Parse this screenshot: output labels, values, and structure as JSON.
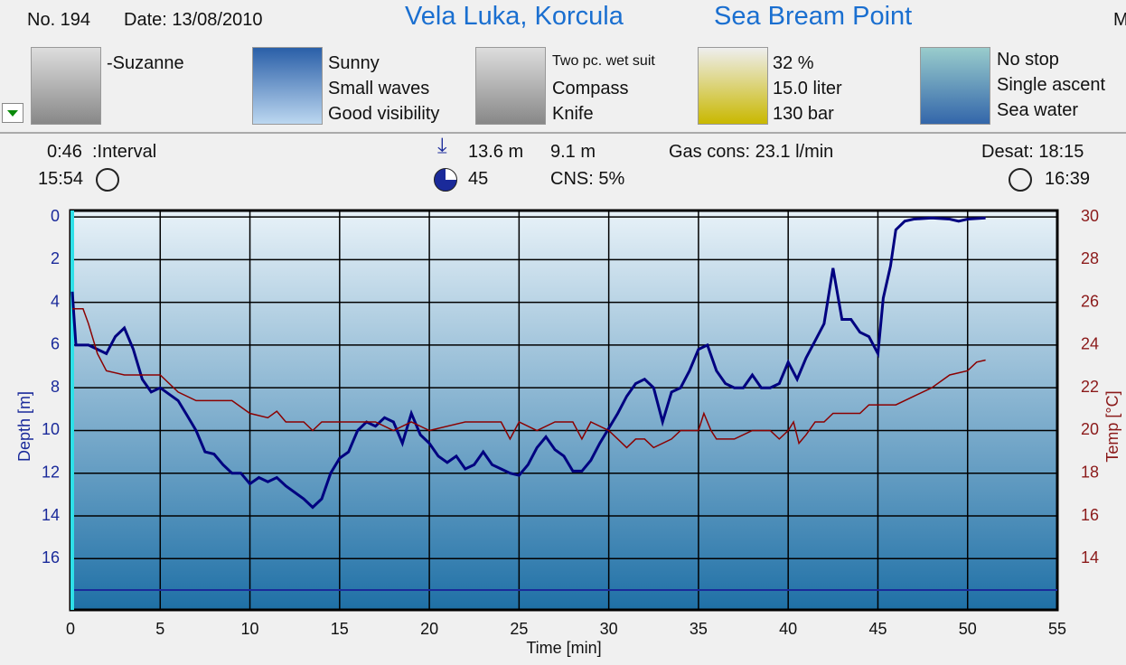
{
  "header": {
    "number": "No. 194",
    "date": "Date: 13/08/2010",
    "location": "Vela Luka, Korcula",
    "site": "Sea Bream Point",
    "cut": "M"
  },
  "panels": {
    "buddy": "-Suzanne",
    "weather": [
      "Sunny",
      "Small waves",
      "Good visibility"
    ],
    "gear": [
      "Two pc. wet suit",
      "Compass",
      "Knife"
    ],
    "gas": [
      "32 %",
      "15.0 liter",
      "130 bar"
    ],
    "deco": [
      "No stop",
      "Single ascent",
      "Sea water"
    ]
  },
  "stats": {
    "interval_value": "0:46",
    "interval_label": ":Interval",
    "start": "15:54",
    "max_depth": "13.6 m",
    "avg_depth": "9.1 m",
    "duration": "45",
    "cns": "CNS:  5%",
    "gas_cons": "Gas cons: 23.1 l/min",
    "desat": "Desat: 18:15",
    "end": "16:39"
  },
  "chart_data": {
    "type": "line",
    "x_label": "Time [min]",
    "y_label": "Depth [m]",
    "y2_label": "Temp [°C]",
    "xlim": [
      0,
      55
    ],
    "xticks": [
      0,
      5,
      10,
      15,
      20,
      25,
      30,
      35,
      40,
      45,
      50,
      55
    ],
    "ylim": [
      18.4,
      -0.3
    ],
    "yticks": [
      0,
      2,
      4,
      6,
      8,
      10,
      12,
      14,
      16
    ],
    "y2lim": [
      11.6,
      30.3
    ],
    "y2ticks": [
      14,
      16,
      18,
      20,
      22,
      24,
      26,
      28,
      30
    ],
    "grid": true,
    "series": [
      {
        "color": "#000080",
        "axis": "y",
        "x": [
          0.1,
          0.3,
          1,
          1.5,
          2,
          2.5,
          3,
          3.5,
          4,
          4.5,
          5,
          5.5,
          6,
          6.5,
          7,
          7.5,
          8,
          8.5,
          9,
          9.5,
          10,
          10.5,
          11,
          11.5,
          12,
          12.5,
          13,
          13.5,
          14,
          14.5,
          15,
          15.5,
          16,
          16.5,
          17,
          17.5,
          18,
          18.5,
          19,
          19.5,
          20,
          20.5,
          21,
          21.5,
          22,
          22.5,
          23,
          23.5,
          24,
          24.5,
          25,
          25.5,
          26,
          26.5,
          27,
          27.5,
          28,
          28.5,
          29,
          29.5,
          30,
          30.5,
          31,
          31.5,
          32,
          32.5,
          33,
          33.5,
          34,
          34.5,
          35,
          35.5,
          36,
          36.5,
          37,
          37.5,
          38,
          38.5,
          39,
          39.5,
          40,
          40.5,
          41,
          41.5,
          42,
          42.5,
          43,
          43.5,
          44,
          44.5,
          45,
          45.3,
          45.7,
          46,
          46.5,
          47,
          48,
          49,
          49.5,
          50,
          51
        ],
        "values": [
          3.5,
          6,
          6,
          6.2,
          6.4,
          5.6,
          5.2,
          6.2,
          7.6,
          8.2,
          8,
          8.3,
          8.6,
          9.3,
          10,
          11,
          11.1,
          11.6,
          12,
          12,
          12.5,
          12.2,
          12.4,
          12.2,
          12.6,
          12.9,
          13.2,
          13.6,
          13.2,
          12,
          11.3,
          11,
          10,
          9.6,
          9.8,
          9.4,
          9.6,
          10.6,
          9.2,
          10.2,
          10.6,
          11.2,
          11.5,
          11.2,
          11.8,
          11.6,
          11,
          11.6,
          11.8,
          12,
          12.1,
          11.6,
          10.8,
          10.3,
          10.9,
          11.2,
          11.9,
          11.9,
          11.4,
          10.6,
          9.9,
          9.2,
          8.4,
          7.8,
          7.6,
          8,
          9.6,
          8.2,
          8,
          7.2,
          6.2,
          6,
          7.2,
          7.8,
          8,
          8,
          7.4,
          8,
          8,
          7.8,
          6.8,
          7.6,
          6.6,
          5.8,
          5,
          2.4,
          4.8,
          4.8,
          5.4,
          5.6,
          6.4,
          3.8,
          2.3,
          0.6,
          0.2,
          0.1,
          0.05,
          0.1,
          0.2,
          0.1,
          0.05
        ]
      },
      {
        "color": "#8b0000",
        "axis": "y2",
        "x": [
          0.1,
          0.7,
          1,
          1.5,
          2,
          3,
          5,
          6,
          7,
          9,
          10,
          11,
          11.5,
          12,
          13,
          13.5,
          14,
          15,
          17,
          18,
          19,
          20,
          22,
          24,
          24.5,
          25,
          26,
          27,
          28,
          28.5,
          29,
          30,
          30.5,
          31,
          31.5,
          32,
          32.5,
          33.5,
          34,
          35,
          35.3,
          35.7,
          36,
          37,
          38,
          39,
          39.5,
          40,
          40.3,
          40.6,
          41,
          41.5,
          42,
          42.5,
          44,
          44.5,
          46,
          47,
          48,
          49,
          50,
          50.5,
          51
        ],
        "values": [
          25.7,
          25.7,
          25,
          23.6,
          22.8,
          22.6,
          22.6,
          21.8,
          21.4,
          21.4,
          20.8,
          20.6,
          20.9,
          20.4,
          20.4,
          20,
          20.4,
          20.4,
          20.4,
          20,
          20.4,
          20,
          20.4,
          20.4,
          19.6,
          20.4,
          20,
          20.4,
          20.4,
          19.6,
          20.4,
          20,
          19.6,
          19.2,
          19.6,
          19.6,
          19.2,
          19.6,
          20,
          20,
          20.8,
          20,
          19.6,
          19.6,
          20,
          20,
          19.6,
          20,
          20.4,
          19.4,
          19.8,
          20.4,
          20.4,
          20.8,
          20.8,
          21.2,
          21.2,
          21.6,
          22,
          22.6,
          22.8,
          23.2,
          23.3
        ]
      }
    ]
  }
}
